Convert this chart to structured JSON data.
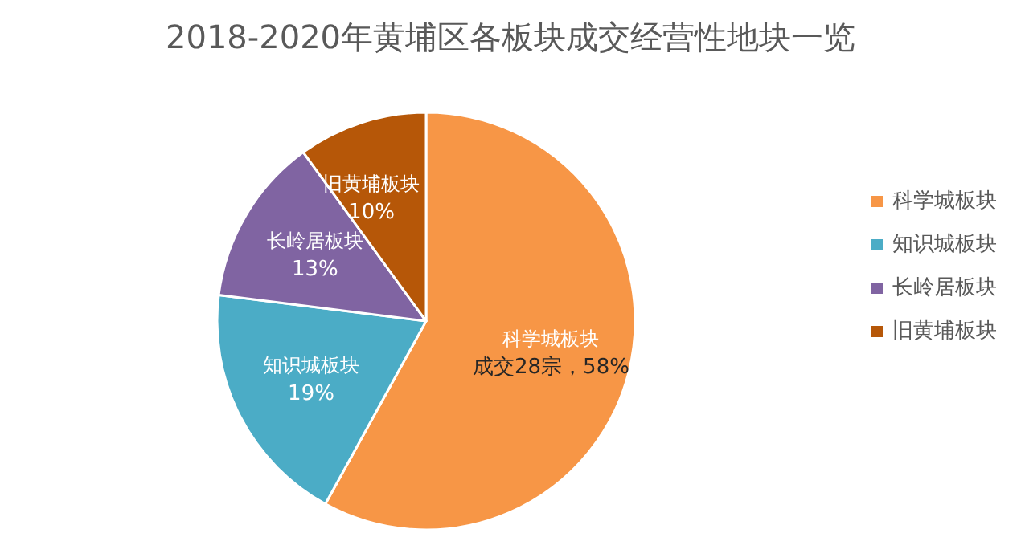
{
  "chart_data": {
    "type": "pie",
    "title": "2018-2020年黄埔区各板块成交经营性地块一览",
    "categories": [
      "科学城板块",
      "知识城板块",
      "长岭居板块",
      "旧黄埔板块"
    ],
    "values": [
      58,
      19,
      13,
      10
    ],
    "colors": [
      "#f79646",
      "#4bacc6",
      "#8064a2",
      "#b65708"
    ],
    "value_labels": [
      "成交28宗，58%",
      "19%",
      "13%",
      "10%"
    ],
    "legend": "right"
  }
}
